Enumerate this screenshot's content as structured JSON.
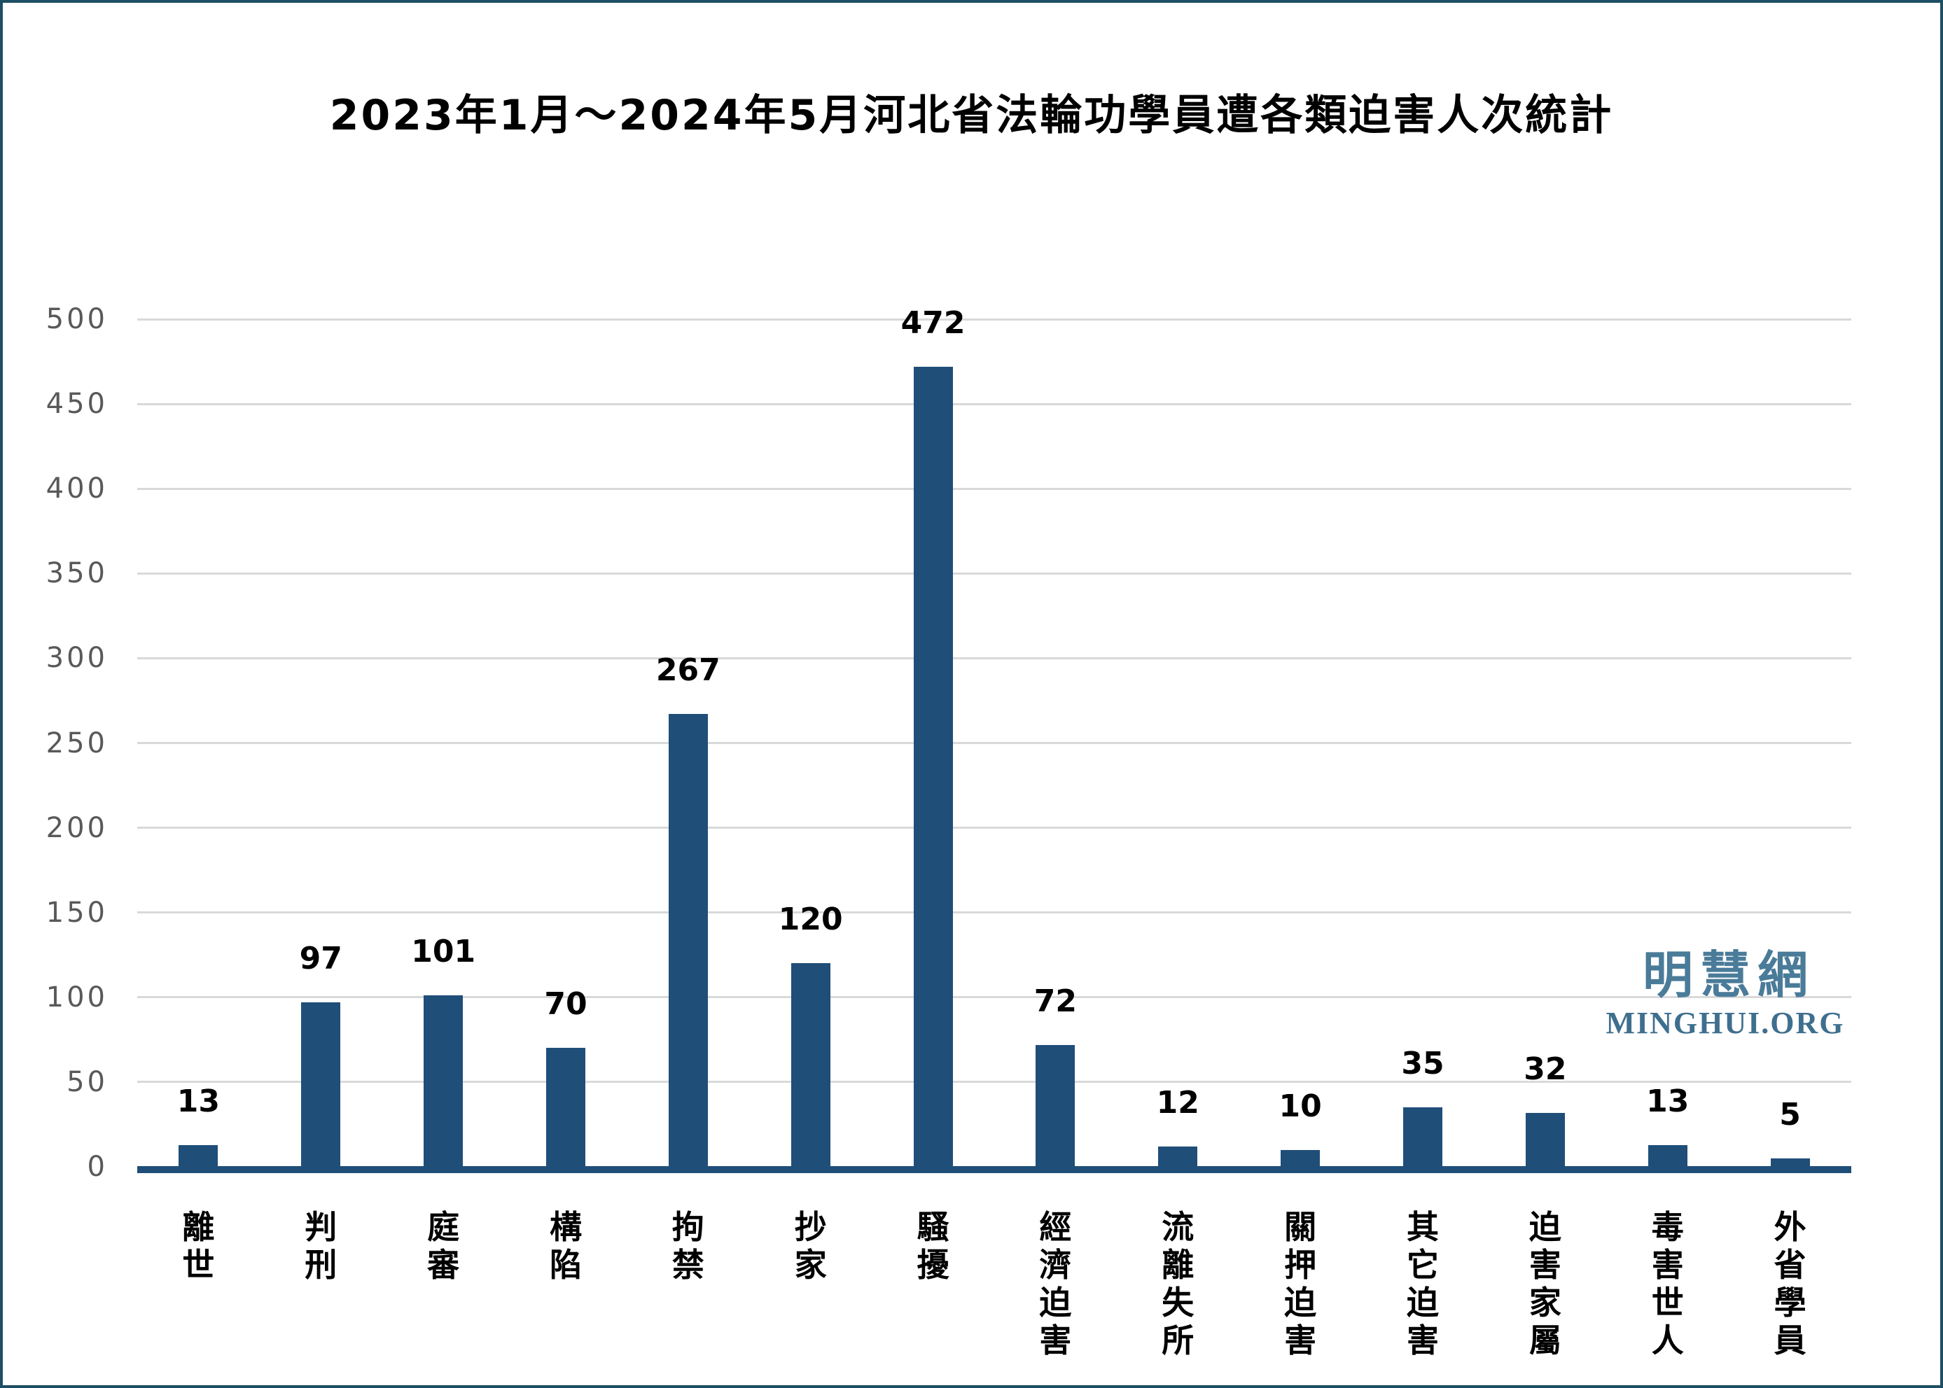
{
  "title": "2023年1月～2024年5月河北省法輪功學員遭各類迫害人次統計",
  "watermark": {
    "cjk": "明慧網",
    "latin": "MINGHUI.ORG"
  },
  "colors": {
    "bar": "#1f4e79",
    "axis": "#1f4e79",
    "grid": "#d9d9d9",
    "tick_label": "#595959",
    "value_label": "#000000",
    "category_label": "#000000",
    "title": "#000000",
    "border": "#1d4e63",
    "watermark_cjk": "#4a7b99",
    "watermark_latin": "#3f6f8e",
    "background": "#ffffff"
  },
  "chart_data": {
    "type": "bar",
    "title": "2023年1月～2024年5月河北省法輪功學員遭各類迫害人次統計",
    "categories": [
      "離世",
      "判刑",
      "庭審",
      "構陷",
      "拘禁",
      "抄家",
      "騷擾",
      "經濟迫害",
      "流離失所",
      "關押迫害",
      "其它迫害",
      "迫害家屬",
      "毒害世人",
      "外省學員"
    ],
    "values": [
      13,
      97,
      101,
      70,
      267,
      120,
      472,
      72,
      12,
      10,
      35,
      32,
      13,
      5
    ],
    "xlabel": "",
    "ylabel": "",
    "ylim": [
      0,
      500
    ],
    "yticks": [
      0,
      50,
      100,
      150,
      200,
      250,
      300,
      350,
      400,
      450,
      500
    ],
    "grid": true,
    "legend": false,
    "bar_labels_shown": true,
    "category_label_orientation": "vertical"
  }
}
